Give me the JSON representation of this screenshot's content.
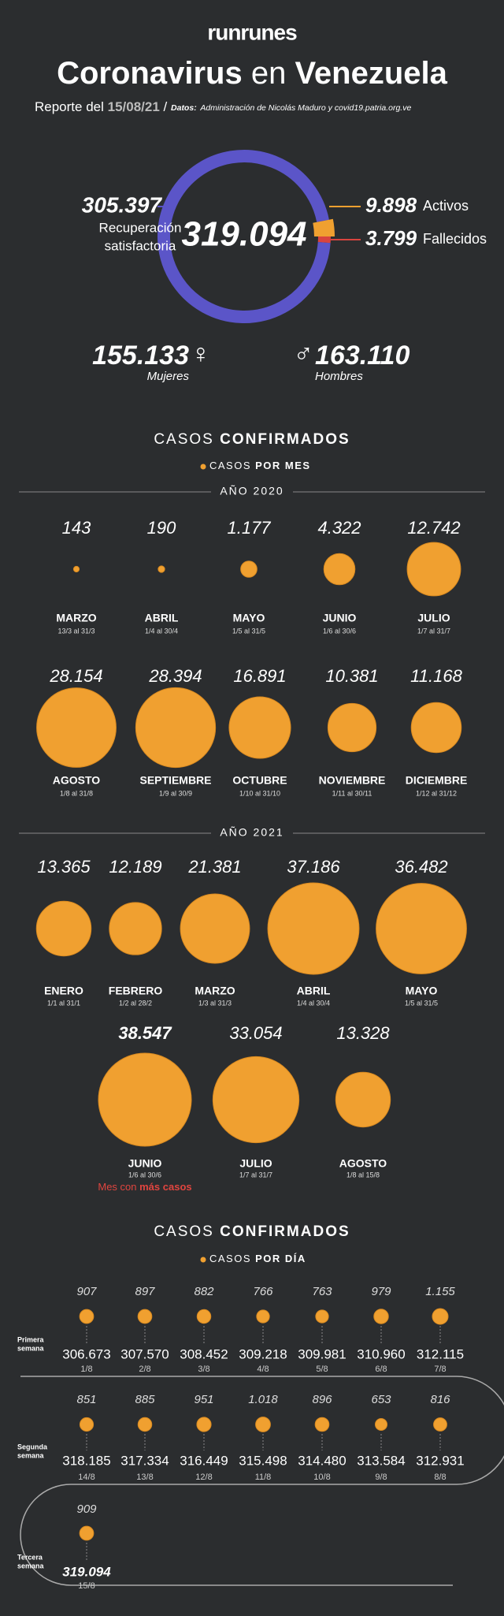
{
  "header": {
    "logo": "runrunes",
    "title": [
      "Coronavirus",
      "en",
      "Venezuela"
    ],
    "report": "Reporte del",
    "date": "15/08/21",
    "separator": "/",
    "source_label": "Datos:",
    "source": "Administración de Nicolás Maduro y covid19.patria.org.ve"
  },
  "summary": {
    "total": {
      "value": 319094,
      "label": "319.094"
    },
    "recovered": {
      "value": 305397,
      "label": "305.397",
      "text": [
        "Recuperación",
        "satisfactoria"
      ],
      "color": "#5b55c8"
    },
    "active": {
      "value": 9898,
      "label": "9.898",
      "text": "Activos",
      "color": "#f0a030"
    },
    "deceased": {
      "value": 3799,
      "label": "3.799",
      "text": "Fallecidos",
      "color": "#d9443f"
    },
    "women": {
      "label": "155.133",
      "symbol": "♀",
      "text": "Mujeres"
    },
    "men": {
      "label": "163.110",
      "symbol": "♂",
      "text": "Hombres"
    }
  },
  "monthly": {
    "heading": [
      "CASOS",
      "CONFIRMADOS"
    ],
    "subheading": [
      "CASOS",
      "POR MES"
    ],
    "color": "#f0a030",
    "years": [
      {
        "year": "AÑO 2020",
        "items": [
          {
            "month": "MARZO",
            "range": "13/3 al 31/3",
            "value": 143,
            "label": "143"
          },
          {
            "month": "ABRIL",
            "range": "1/4 al 30/4",
            "value": 190,
            "label": "190"
          },
          {
            "month": "MAYO",
            "range": "1/5 al 31/5",
            "value": 1177,
            "label": "1.177"
          },
          {
            "month": "JUNIO",
            "range": "1/6 al 30/6",
            "value": 4322,
            "label": "4.322"
          },
          {
            "month": "JULIO",
            "range": "1/7 al 31/7",
            "value": 12742,
            "label": "12.742"
          },
          {
            "month": "AGOSTO",
            "range": "1/8 al 31/8",
            "value": 28154,
            "label": "28.154"
          },
          {
            "month": "SEPTIEMBRE",
            "range": "1/9 al 30/9",
            "value": 28394,
            "label": "28.394"
          },
          {
            "month": "OCTUBRE",
            "range": "1/10 al 31/10",
            "value": 16891,
            "label": "16.891"
          },
          {
            "month": "NOVIEMBRE",
            "range": "1/11 al 30/11",
            "value": 10381,
            "label": "10.381"
          },
          {
            "month": "DICIEMBRE",
            "range": "1/12 al 31/12",
            "value": 11168,
            "label": "11.168"
          }
        ]
      },
      {
        "year": "AÑO 2021",
        "items": [
          {
            "month": "ENERO",
            "range": "1/1 al 31/1",
            "value": 13365,
            "label": "13.365"
          },
          {
            "month": "FEBRERO",
            "range": "1/2 al 28/2",
            "value": 12189,
            "label": "12.189"
          },
          {
            "month": "MARZO",
            "range": "1/3 al 31/3",
            "value": 21381,
            "label": "21.381"
          },
          {
            "month": "ABRIL",
            "range": "1/4 al 30/4",
            "value": 37186,
            "label": "37.186"
          },
          {
            "month": "MAYO",
            "range": "1/5 al 31/5",
            "value": 36482,
            "label": "36.482"
          },
          {
            "month": "JUNIO",
            "range": "1/6 al 30/6",
            "value": 38547,
            "label": "38.547"
          },
          {
            "month": "JULIO",
            "range": "1/7 al 31/7",
            "value": 33054,
            "label": "33.054"
          },
          {
            "month": "AGOSTO",
            "range": "1/8 al 15/8",
            "value": 13328,
            "label": "13.328"
          }
        ]
      }
    ],
    "highlight_note": [
      "Mes con",
      "más casos"
    ]
  },
  "daily": {
    "heading": [
      "CASOS",
      "CONFIRMADOS"
    ],
    "subheading": [
      "CASOS",
      "POR DÍA"
    ],
    "weeks": [
      [
        "Primera",
        "semana"
      ],
      [
        "Segunda",
        "semana"
      ],
      [
        "Tercera",
        "semana"
      ]
    ],
    "items": [
      {
        "date": "1/8",
        "value": 907,
        "label": "907",
        "cumulative": "306.673"
      },
      {
        "date": "2/8",
        "value": 897,
        "label": "897",
        "cumulative": "307.570"
      },
      {
        "date": "3/8",
        "value": 882,
        "label": "882",
        "cumulative": "308.452"
      },
      {
        "date": "4/8",
        "value": 766,
        "label": "766",
        "cumulative": "309.218"
      },
      {
        "date": "5/8",
        "value": 763,
        "label": "763",
        "cumulative": "309.981"
      },
      {
        "date": "6/8",
        "value": 979,
        "label": "979",
        "cumulative": "310.960"
      },
      {
        "date": "7/8",
        "value": 1155,
        "label": "1.155",
        "cumulative": "312.115"
      },
      {
        "date": "8/8",
        "value": 816,
        "label": "816",
        "cumulative": "312.931"
      },
      {
        "date": "9/8",
        "value": 653,
        "label": "653",
        "cumulative": "313.584"
      },
      {
        "date": "10/8",
        "value": 896,
        "label": "896",
        "cumulative": "314.480"
      },
      {
        "date": "11/8",
        "value": 1018,
        "label": "1.018",
        "cumulative": "315.498"
      },
      {
        "date": "12/8",
        "value": 951,
        "label": "951",
        "cumulative": "316.449"
      },
      {
        "date": "13/8",
        "value": 885,
        "label": "885",
        "cumulative": "317.334"
      },
      {
        "date": "14/8",
        "value": 851,
        "label": "851",
        "cumulative": "318.185"
      },
      {
        "date": "15/8",
        "value": 909,
        "label": "909",
        "cumulative": "319.094"
      }
    ]
  }
}
